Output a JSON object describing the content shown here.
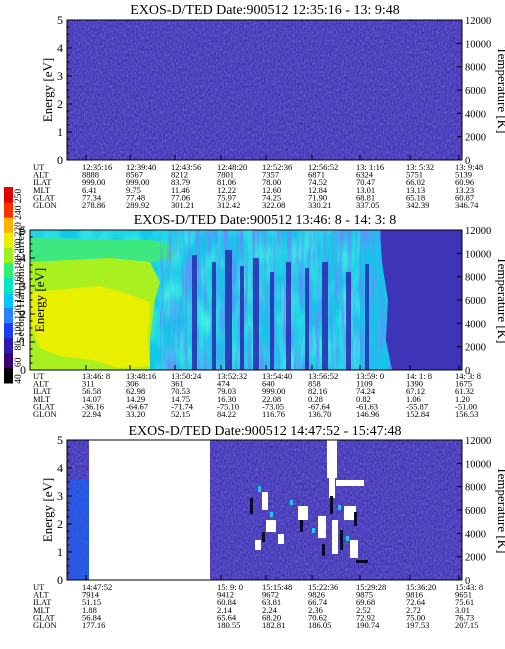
{
  "colorbar": {
    "title": "Second Harmonic Current",
    "ticks": [
      "40",
      "60",
      "80",
      "100",
      "120",
      "140",
      "160",
      "180",
      "200",
      "220",
      "240",
      "250"
    ],
    "colors": [
      "#000000",
      "#3a0070",
      "#2a1ab0",
      "#1e3cf0",
      "#2a80ff",
      "#00c8ff",
      "#00e6c0",
      "#30f070",
      "#a0f020",
      "#e6f000",
      "#ffb000",
      "#ff3000",
      "#e00000"
    ]
  },
  "chart_data": [
    {
      "type": "heatmap",
      "title": "EXOS-D/TED  Date:900512  12:35:16 - 13: 9:48",
      "ylabel": "Energy [eV]",
      "y2label": "Temperature [K]",
      "ylim": [
        0,
        5
      ],
      "y2lim": [
        0,
        12000
      ],
      "yticks": [
        "0",
        "1",
        "2",
        "3",
        "4",
        "5"
      ],
      "y2ticks": [
        "0",
        "2000",
        "4000",
        "6000",
        "8000",
        "10000",
        "12000"
      ],
      "row_labels": [
        "UT",
        "ALT",
        "ILAT",
        "MLT",
        "GLAT",
        "GLON"
      ],
      "columns": [
        [
          "12:35:16",
          "8888",
          "999.00",
          "6.41",
          "77.34",
          "278.86"
        ],
        [
          "12:39:40",
          "8567",
          "999.00",
          "9.75",
          "77.48",
          "289.92"
        ],
        [
          "12:43:56",
          "8212",
          "83.79",
          "11.46",
          "77.06",
          "301.21"
        ],
        [
          "12:48:20",
          "7801",
          "81.06",
          "12.22",
          "75.97",
          "312.42"
        ],
        [
          "12:52:36",
          "7357",
          "78.00",
          "12.60",
          "74.25",
          "322.08"
        ],
        [
          "12:56:52",
          "6871",
          "74.52",
          "12.84",
          "71.90",
          "330.21"
        ],
        [
          "13: 1:16",
          "6324",
          "70.47",
          "13.01",
          "68.81",
          "337.05"
        ],
        [
          "13: 5:32",
          "5751",
          "66.02",
          "13.13",
          "65.18",
          "342.39"
        ],
        [
          "13: 9:48",
          "5139",
          "60.96",
          "13.23",
          "60.87",
          "346.74"
        ]
      ],
      "empty_spans": []
    },
    {
      "type": "heatmap",
      "title": "EXOS-D/TED  Date:900512  13:46: 8 - 14: 3: 8",
      "ylabel": "Energy [eV]",
      "y2label": "Temperature [K]",
      "ylim": [
        0,
        5
      ],
      "y2lim": [
        0,
        12000
      ],
      "yticks": [
        "0",
        "1",
        "2",
        "3",
        "4",
        "5"
      ],
      "y2ticks": [
        "0",
        "2000",
        "4000",
        "6000",
        "8000",
        "10000",
        "12000"
      ],
      "row_labels": [
        "UT",
        "ALT",
        "ILAT",
        "MLT",
        "GLAT",
        "GLON"
      ],
      "columns": [
        [
          "13:46: 8",
          "311",
          "56.58",
          "14.07",
          "-36.16",
          "22.94"
        ],
        [
          "13:48:16",
          "306",
          "62.98",
          "14.29",
          "-64.67",
          "33.20"
        ],
        [
          "13:50:24",
          "361",
          "70.53",
          "14.75",
          "-71.74",
          "52.15"
        ],
        [
          "13:52:32",
          "474",
          "79.03",
          "16.30",
          "-75.10",
          "84.22"
        ],
        [
          "13:54:40",
          "640",
          "999.00",
          "22.08",
          "-73.05",
          "116.76"
        ],
        [
          "13:56:52",
          "858",
          "82.16",
          "0.28",
          "-67.64",
          "136.70"
        ],
        [
          "13:59: 0",
          "1109",
          "74.24",
          "0.82",
          "-61.63",
          "146.96"
        ],
        [
          "14: 1: 8",
          "1390",
          "67.12",
          "1.06",
          "-55.87",
          "152.84"
        ],
        [
          "14: 3: 8",
          "1675",
          "61.32",
          "1.20",
          "-51.00",
          "156.53"
        ]
      ],
      "empty_spans": []
    },
    {
      "type": "heatmap",
      "title": "EXOS-D/TED  Date:900512  14:47:52 - 15:47:48",
      "ylabel": "Energy [eV]",
      "y2label": "Temperature [K]",
      "ylim": [
        0,
        5
      ],
      "y2lim": [
        0,
        12000
      ],
      "yticks": [
        "0",
        "1",
        "2",
        "3",
        "4",
        "5"
      ],
      "y2ticks": [
        "0",
        "2000",
        "4000",
        "6000",
        "8000",
        "10000",
        "12000"
      ],
      "row_labels": [
        "UT",
        "ALT",
        "ILAT",
        "MLT",
        "GLAT",
        "GLON"
      ],
      "columns": [
        [
          "14:47:52",
          "7914",
          "51.15",
          "1.88",
          "56.84",
          "177.16"
        ],
        [
          "",
          "",
          "",
          "",
          "",
          ""
        ],
        [
          "",
          "",
          "",
          "",
          "",
          ""
        ],
        [
          "15: 9: 0",
          "9412",
          "60.84",
          "2.14",
          "65.64",
          "180.55"
        ],
        [
          "15:15:48",
          "9672",
          "63.81",
          "2.24",
          "68.20",
          "182.81"
        ],
        [
          "15:22:36",
          "9826",
          "66.74",
          "2.36",
          "70.62",
          "186.05"
        ],
        [
          "15:29:28",
          "9875",
          "69.68",
          "2.52",
          "72.92",
          "190.74"
        ],
        [
          "15:36:20",
          "9816",
          "72.64",
          "2.72",
          "75.00",
          "197.53"
        ],
        [
          "15:43: 8",
          "9651",
          "75.61",
          "3.01",
          "76.73",
          "207.15"
        ]
      ],
      "empty_spans": [
        [
          0.055,
          0.365
        ]
      ]
    }
  ]
}
